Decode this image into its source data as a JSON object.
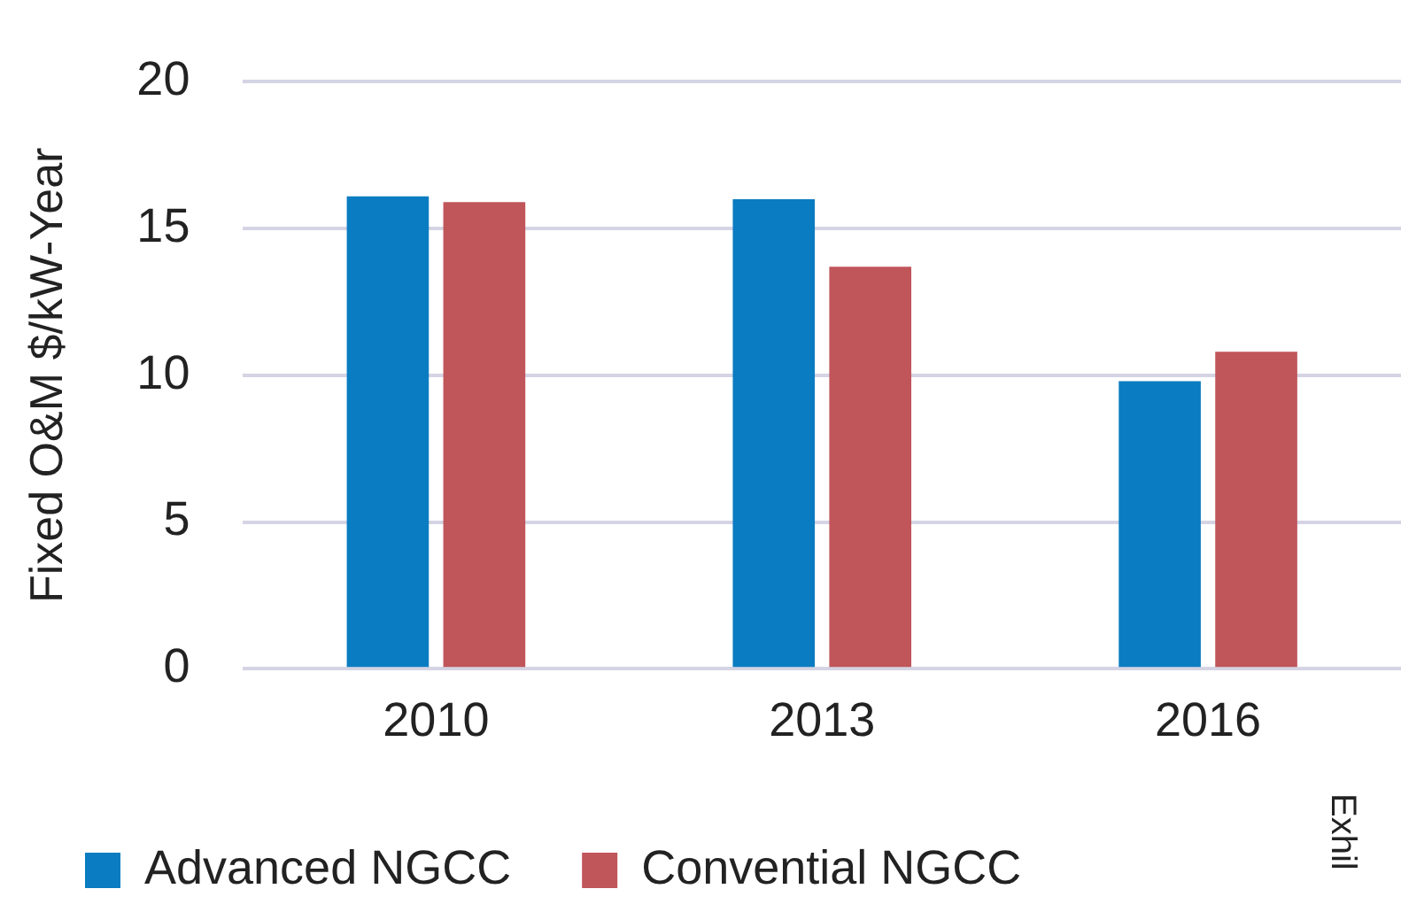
{
  "chart_data": {
    "type": "bar",
    "ylabel": "Fixed O&M $/kW-Year",
    "categories": [
      "2010",
      "2013",
      "2016"
    ],
    "series": [
      {
        "name": "Advanced NGCC",
        "color": "#0a7cc1",
        "values": [
          16.1,
          16.0,
          9.8
        ]
      },
      {
        "name": "Convential NGCC",
        "color": "#c0555a",
        "values": [
          15.9,
          13.7,
          10.8
        ]
      }
    ],
    "ylim": [
      0,
      20
    ],
    "yticks": [
      0,
      5,
      10,
      15,
      20
    ],
    "grid": "y",
    "legend": "bottom",
    "annotations": [
      "Exhil"
    ]
  }
}
